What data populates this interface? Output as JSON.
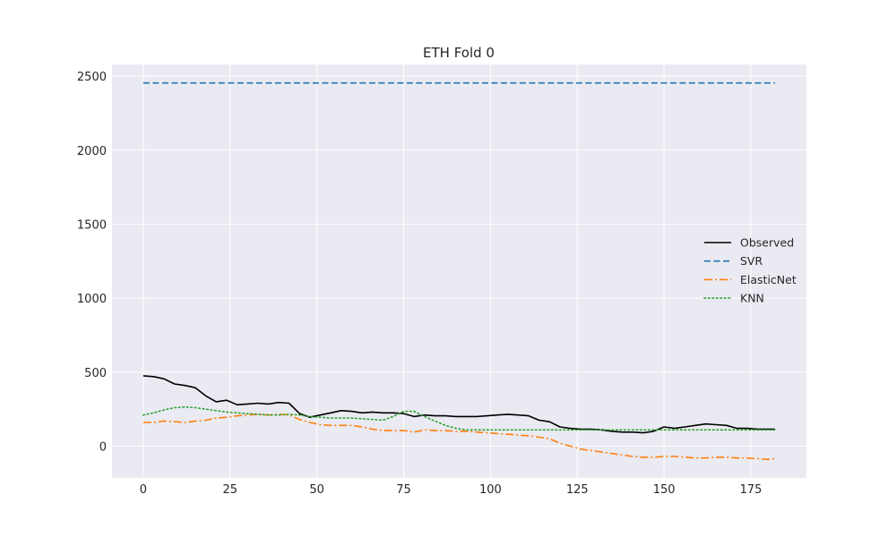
{
  "chart_data": {
    "type": "line",
    "title": "ETH Fold 0",
    "xlabel": "",
    "ylabel": "",
    "xlim": [
      -9,
      191
    ],
    "ylim": [
      -215,
      2580
    ],
    "xticks": [
      0,
      25,
      50,
      75,
      100,
      125,
      150,
      175
    ],
    "yticks": [
      0,
      500,
      1000,
      1500,
      2000,
      2500
    ],
    "grid": true,
    "legend_position": "center-right",
    "series": [
      {
        "name": "Observed",
        "color": "#000000",
        "style": "solid",
        "x": [
          0,
          3,
          6,
          9,
          12,
          15,
          18,
          21,
          24,
          27,
          30,
          33,
          36,
          39,
          42,
          45,
          48,
          51,
          54,
          57,
          60,
          63,
          66,
          69,
          72,
          75,
          78,
          81,
          84,
          87,
          90,
          93,
          96,
          99,
          102,
          105,
          108,
          111,
          114,
          117,
          120,
          123,
          126,
          129,
          132,
          135,
          138,
          141,
          144,
          147,
          150,
          153,
          156,
          159,
          162,
          165,
          168,
          171,
          174,
          177,
          180,
          182
        ],
        "values": [
          475,
          470,
          455,
          420,
          410,
          395,
          340,
          300,
          310,
          280,
          285,
          290,
          285,
          295,
          290,
          220,
          195,
          210,
          225,
          240,
          235,
          225,
          230,
          225,
          225,
          220,
          200,
          210,
          205,
          205,
          200,
          200,
          200,
          205,
          210,
          215,
          210,
          205,
          175,
          165,
          130,
          120,
          115,
          115,
          110,
          100,
          95,
          95,
          90,
          100,
          130,
          120,
          130,
          140,
          150,
          145,
          140,
          120,
          120,
          115,
          115,
          115
        ]
      },
      {
        "name": "SVR",
        "color": "#1f77b4",
        "style": "dashed",
        "x": [
          0,
          182
        ],
        "values": [
          2455,
          2455
        ]
      },
      {
        "name": "ElasticNet",
        "color": "#ff7f0e",
        "style": "dashdot",
        "x": [
          0,
          3,
          6,
          9,
          12,
          15,
          18,
          21,
          24,
          27,
          30,
          33,
          36,
          39,
          42,
          45,
          48,
          51,
          54,
          57,
          60,
          63,
          66,
          69,
          72,
          75,
          78,
          81,
          84,
          87,
          90,
          93,
          96,
          99,
          102,
          105,
          108,
          111,
          114,
          117,
          120,
          123,
          126,
          129,
          132,
          135,
          138,
          141,
          144,
          147,
          150,
          153,
          156,
          159,
          162,
          165,
          168,
          171,
          174,
          177,
          180,
          182
        ],
        "values": [
          160,
          160,
          170,
          165,
          160,
          170,
          175,
          190,
          195,
          205,
          210,
          215,
          210,
          215,
          210,
          180,
          160,
          145,
          140,
          140,
          140,
          130,
          115,
          105,
          105,
          105,
          95,
          110,
          105,
          105,
          100,
          100,
          95,
          90,
          85,
          80,
          75,
          70,
          60,
          50,
          20,
          0,
          -20,
          -30,
          -40,
          -50,
          -60,
          -70,
          -75,
          -75,
          -70,
          -70,
          -75,
          -80,
          -80,
          -75,
          -75,
          -80,
          -80,
          -85,
          -90,
          -85
        ]
      },
      {
        "name": "KNN",
        "color": "#2ca02c",
        "style": "dotted",
        "x": [
          0,
          3,
          6,
          9,
          12,
          15,
          18,
          21,
          24,
          27,
          30,
          33,
          36,
          39,
          42,
          45,
          48,
          51,
          54,
          57,
          60,
          63,
          66,
          69,
          72,
          75,
          78,
          81,
          84,
          87,
          90,
          93,
          96,
          99,
          102,
          105,
          108,
          111,
          114,
          117,
          120,
          123,
          126,
          129,
          132,
          135,
          138,
          141,
          144,
          147,
          150,
          153,
          156,
          159,
          162,
          165,
          168,
          171,
          174,
          177,
          180,
          182
        ],
        "values": [
          210,
          225,
          245,
          260,
          265,
          260,
          250,
          240,
          230,
          225,
          220,
          215,
          210,
          210,
          215,
          210,
          200,
          195,
          190,
          190,
          190,
          185,
          180,
          175,
          200,
          235,
          235,
          200,
          170,
          140,
          120,
          110,
          110,
          110,
          110,
          110,
          110,
          110,
          110,
          110,
          110,
          110,
          110,
          110,
          110,
          110,
          110,
          110,
          110,
          110,
          110,
          110,
          110,
          110,
          110,
          110,
          110,
          110,
          110,
          110,
          110,
          110
        ]
      }
    ]
  }
}
